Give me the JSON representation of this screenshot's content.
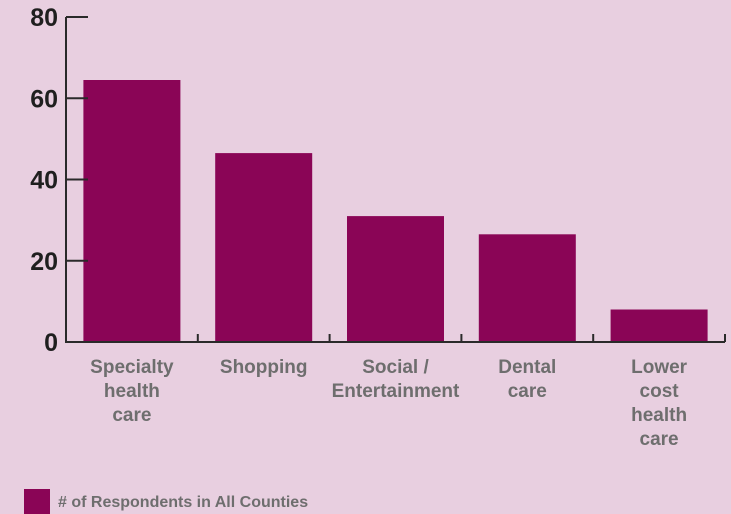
{
  "chart_data": {
    "type": "bar",
    "categories": [
      [
        "Specialty",
        "health",
        "care"
      ],
      [
        "Shopping"
      ],
      [
        "Social /",
        "Entertainment"
      ],
      [
        "Dental",
        "care"
      ],
      [
        "Lower",
        "cost",
        "health",
        "care"
      ]
    ],
    "values": [
      64.5,
      46.5,
      31,
      26.5,
      8
    ],
    "ylim": [
      0,
      80
    ],
    "yticks": [
      "0",
      "20",
      "40",
      "60",
      "80"
    ],
    "series": [
      {
        "name": "# of Respondents in All Counties",
        "color": "#8a0556"
      }
    ],
    "legend_position": "bottom-left",
    "grid": false
  }
}
